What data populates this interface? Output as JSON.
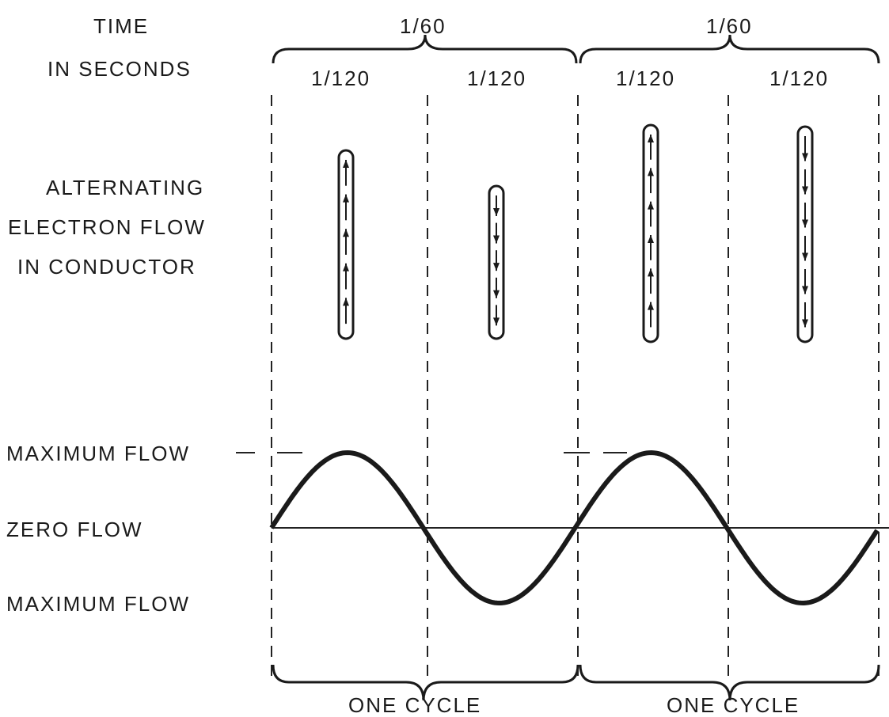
{
  "labels": {
    "time_line1": "TIME",
    "time_line2": "IN SECONDS",
    "period_top": [
      "1/60",
      "1/60"
    ],
    "half_periods": [
      "1/120",
      "1/120",
      "1/120",
      "1/120"
    ],
    "flow_line1": "ALTERNATING",
    "flow_line2": "ELECTRON FLOW",
    "flow_line3": "IN CONDUCTOR",
    "max_flow_top": "MAXIMUM FLOW",
    "zero_flow": "ZERO FLOW",
    "max_flow_bottom": "MAXIMUM FLOW",
    "cycles": [
      "ONE CYCLE",
      "ONE CYCLE"
    ]
  }
}
